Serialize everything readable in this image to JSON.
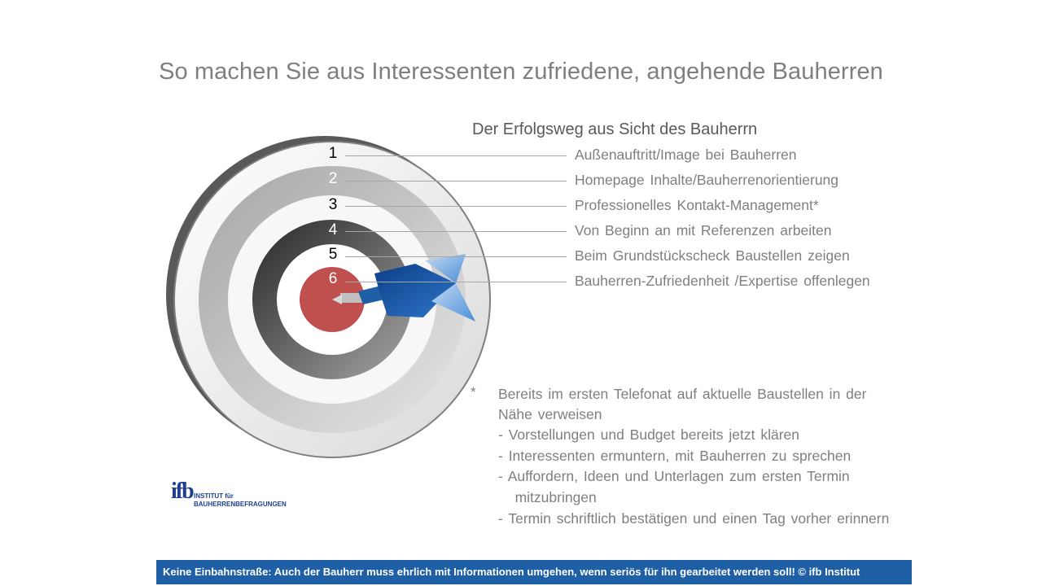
{
  "title": "So machen Sie aus Interessenten zufriedene, angehende Bauherren",
  "subtitle": "Der Erfolgsweg aus Sicht des Bauherrn",
  "steps": [
    {
      "num": "1",
      "label": "Außenauftritt/Image  bei Bauherren"
    },
    {
      "num": "2",
      "label": "Homepage Inhalte/Bauherrenorientierung"
    },
    {
      "num": "3",
      "label": "Professionelles  Kontakt-Management*"
    },
    {
      "num": "4",
      "label": "Von Beginn an mit Referenzen  arbeiten"
    },
    {
      "num": "5",
      "label": "Beim Grundstückscheck Baustellen zeigen"
    },
    {
      "num": "6",
      "label": "Bauherren-Zufriedenheit  /Expertise  offenlegen"
    }
  ],
  "note": {
    "star": "*",
    "lines": [
      "Bereits im ersten Telefonat auf aktuelle Baustellen in der",
      "Nähe verweisen",
      "-  Vorstellungen und Budget bereits jetzt klären",
      "-  Interessenten  ermuntern, mit Bauherren zu sprechen",
      "-  Auffordern,  Ideen und Unterlagen zum ersten Termin",
      "   mitzubringen",
      "- Termin schriftlich bestätigen und einen Tag vorher erinnern"
    ]
  },
  "logo": {
    "mark": "ifb",
    "line1": "INSTITUT für",
    "line2": "BAUHERRENBEFRAGUNGEN"
  },
  "footer": "Keine Einbahnstraße: Auch der Bauherr muss ehrlich mit Informationen umgehen, wenn seriös für ihn gearbeitet werden soll!  © ifb Institut",
  "colors": {
    "title": "#7f7f7f",
    "footer_bg": "#1f5fa6",
    "bullseye": "#c0504d",
    "dart_blue": "#1f5fa6",
    "dart_light": "#8db4e2"
  }
}
